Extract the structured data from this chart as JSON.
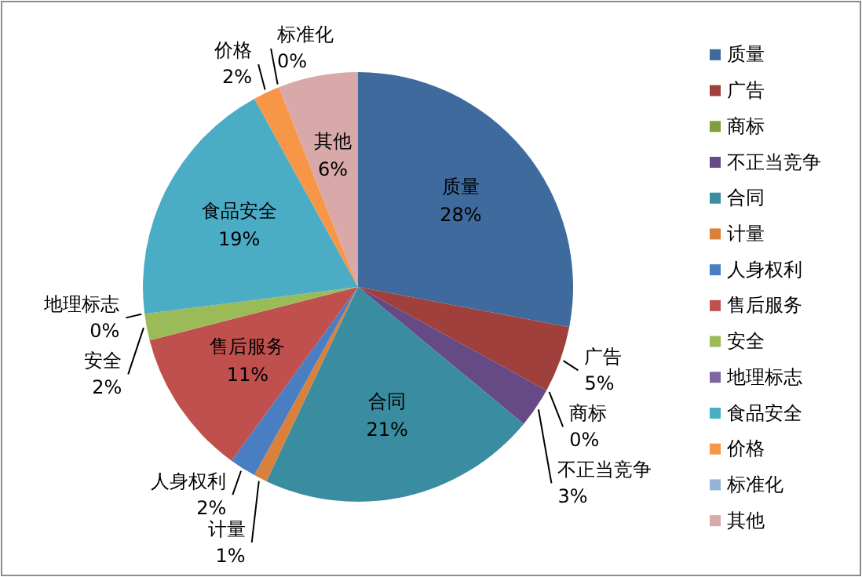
{
  "chart_data": {
    "type": "pie",
    "legend": "right",
    "categories": [
      "质量",
      "广告",
      "商标",
      "不正当竞争",
      "合同",
      "计量",
      "人身权利",
      "售后服务",
      "安全",
      "地理标志",
      "食品安全",
      "价格",
      "标准化",
      "其他"
    ],
    "values": [
      28,
      5,
      0,
      3,
      21,
      1,
      2,
      11,
      2,
      0,
      19,
      2,
      0,
      6
    ],
    "value_labels": [
      "28%",
      "5%",
      "0%",
      "3%",
      "21%",
      "1%",
      "2%",
      "11%",
      "2%",
      "0%",
      "19%",
      "2%",
      "0%",
      "6%"
    ],
    "colors": [
      "#3e6a9e",
      "#a0403d",
      "#7f9f3f",
      "#664a85",
      "#3a8ca0",
      "#d9803a",
      "#4a7ec2",
      "#c0504d",
      "#9bbb59",
      "#8064a2",
      "#4bacc6",
      "#f79646",
      "#95b3d7",
      "#d9a8a8"
    ]
  }
}
